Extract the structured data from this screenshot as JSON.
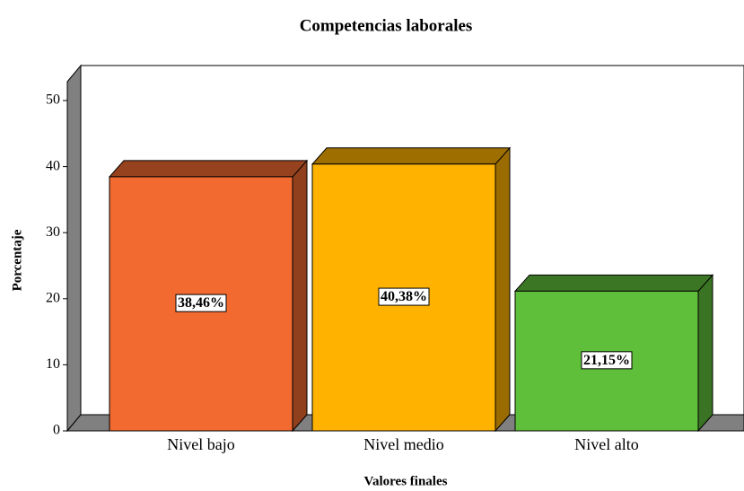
{
  "chart_data": {
    "type": "bar3d",
    "title": "Competencias laborales",
    "x_label": "Valores finales",
    "y_label": "Porcentaje",
    "categories": [
      "Nivel bajo",
      "Nivel medio",
      "Nivel alto"
    ],
    "values": [
      38.46,
      40.38,
      21.15
    ],
    "value_labels": [
      "38,46%",
      "40,38%",
      "21,15%"
    ],
    "colors": [
      "#f26a30",
      "#ffb300",
      "#5fbf3a"
    ],
    "ylim": [
      0,
      50
    ],
    "yticks": [
      0,
      10,
      20,
      30,
      40,
      50
    ],
    "grid": false
  }
}
